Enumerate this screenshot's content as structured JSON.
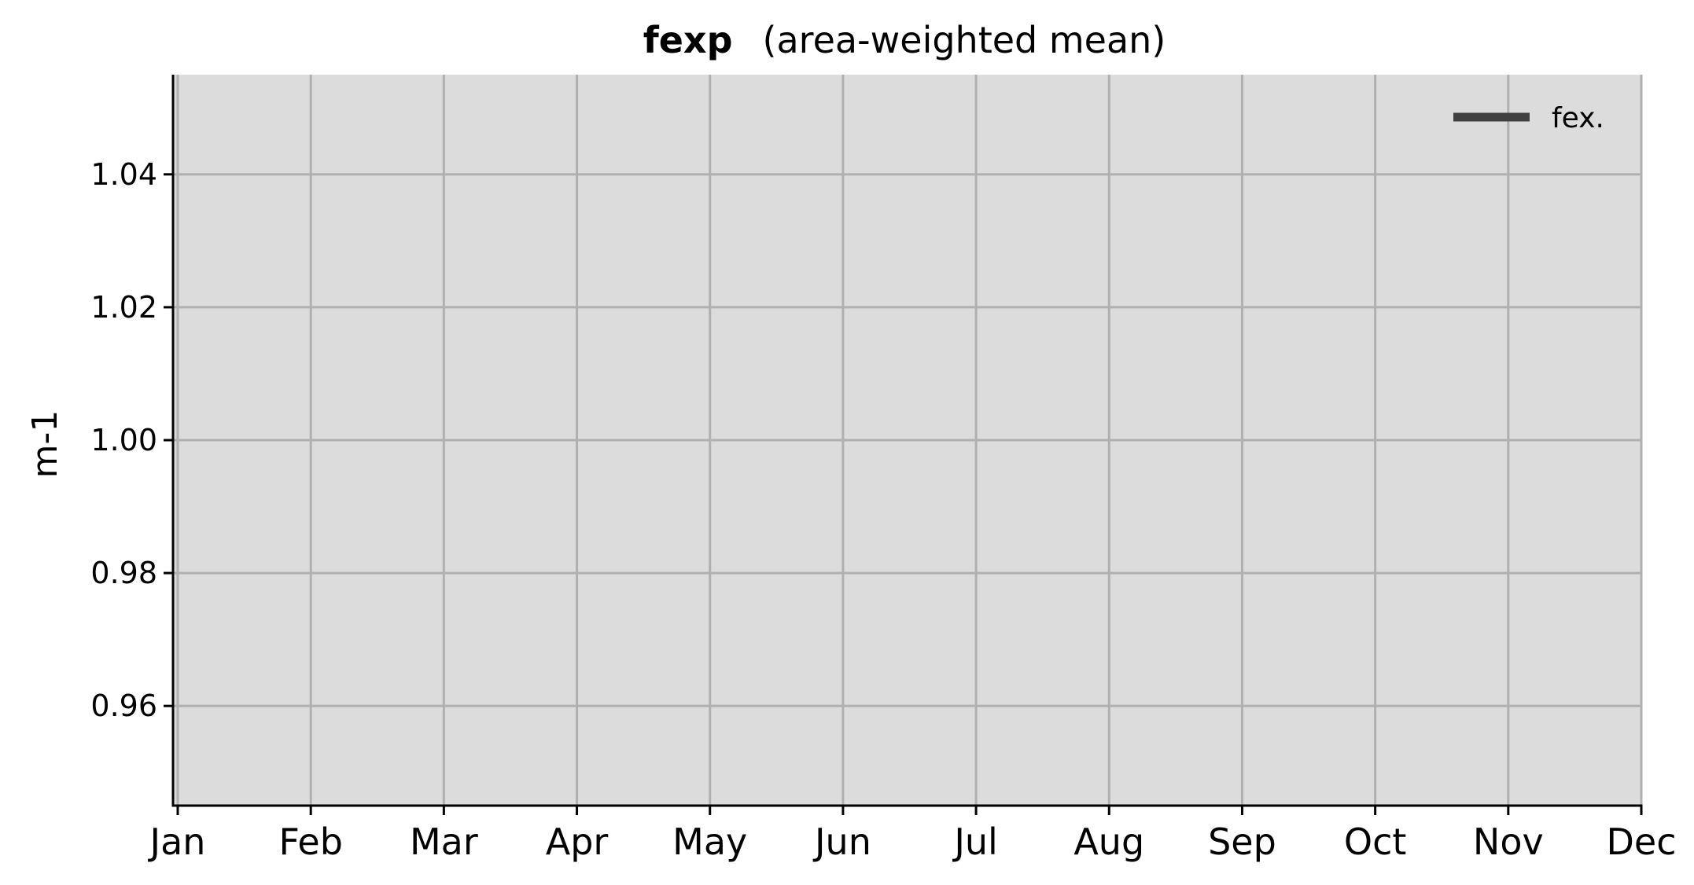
{
  "chart_data": {
    "type": "line",
    "title": "fexp",
    "subtitle": "(area-weighted mean)",
    "xlabel": "",
    "ylabel": "m-1",
    "x_tick_labels": [
      "Jan",
      "Feb",
      "Mar",
      "Apr",
      "May",
      "Jun",
      "Jul",
      "Aug",
      "Sep",
      "Oct",
      "Nov",
      "Dec"
    ],
    "x_range": [
      1,
      12
    ],
    "ylim": [
      0.945,
      1.055
    ],
    "y_ticks": [
      0.96,
      0.98,
      1.0,
      1.02,
      1.04
    ],
    "y_tick_labels": [
      "0.96",
      "0.98",
      "1.00",
      "1.02",
      "1.04"
    ],
    "grid": true,
    "legend_position": "top-right",
    "series": [
      {
        "name": "fex.",
        "color": "#404040",
        "values": []
      }
    ],
    "colors": {
      "plot_background": "#dcdcdc",
      "grid": "#b0b0b0",
      "axis": "#000000"
    }
  }
}
